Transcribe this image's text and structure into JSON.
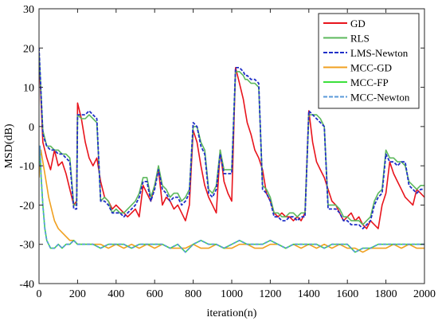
{
  "chart_data": {
    "type": "line",
    "title": "",
    "xlabel": "iteration(n)",
    "ylabel": "MSD(dB)",
    "xlim": [
      0,
      2000
    ],
    "ylim": [
      -40,
      30
    ],
    "xticks": [
      0,
      200,
      400,
      600,
      800,
      1000,
      1200,
      1400,
      1600,
      1800,
      2000
    ],
    "yticks": [
      -40,
      -30,
      -20,
      -10,
      0,
      10,
      20,
      30
    ],
    "grid": false,
    "legend_position": "top-right",
    "series": [
      {
        "name": "GD",
        "color": "#e8141c",
        "dash": "solid",
        "x": [
          0,
          20,
          40,
          60,
          80,
          100,
          120,
          140,
          160,
          180,
          195,
          200,
          220,
          240,
          260,
          280,
          300,
          320,
          340,
          360,
          380,
          400,
          420,
          440,
          460,
          480,
          500,
          520,
          540,
          560,
          580,
          600,
          620,
          640,
          660,
          680,
          700,
          720,
          740,
          760,
          780,
          800,
          820,
          840,
          860,
          880,
          900,
          920,
          940,
          960,
          980,
          1000,
          1020,
          1040,
          1060,
          1070,
          1080,
          1100,
          1120,
          1140,
          1160,
          1180,
          1200,
          1220,
          1240,
          1260,
          1280,
          1300,
          1320,
          1340,
          1360,
          1380,
          1400,
          1420,
          1440,
          1460,
          1480,
          1500,
          1520,
          1540,
          1560,
          1580,
          1600,
          1620,
          1640,
          1660,
          1680,
          1700,
          1720,
          1740,
          1760,
          1780,
          1800,
          1820,
          1840,
          1860,
          1880,
          1900,
          1920,
          1940,
          1960,
          1980,
          2000
        ],
        "y": [
          18,
          -4,
          -8,
          -11,
          -6,
          -10,
          -9,
          -12,
          -16,
          -20,
          -19,
          6,
          2,
          -4,
          -8,
          -10,
          -8,
          -14,
          -18,
          -19,
          -21,
          -20,
          -21,
          -22,
          -23,
          -22,
          -21,
          -23,
          -15,
          -17,
          -19,
          -15,
          -11,
          -20,
          -18,
          -19,
          -21,
          -20,
          -22,
          -24,
          -20,
          -1,
          -4,
          -10,
          -15,
          -18,
          -20,
          -22,
          -6,
          -14,
          -17,
          -19,
          15,
          11,
          7,
          4,
          1,
          -2,
          -6,
          -8,
          -11,
          -17,
          -19,
          -22,
          -23,
          -22,
          -23,
          -23,
          -24,
          -23,
          -24,
          -22,
          4,
          -4,
          -9,
          -11,
          -13,
          -16,
          -19,
          -20,
          -22,
          -24,
          -23,
          -22,
          -24,
          -23,
          -25,
          -26,
          -24,
          -25,
          -26,
          -20,
          -17,
          -9,
          -12,
          -14,
          -16,
          -18,
          -19,
          -20,
          -16,
          -17,
          -18
        ]
      },
      {
        "name": "RLS",
        "color": "#5cb85c",
        "dash": "solid",
        "x": [
          0,
          20,
          40,
          60,
          80,
          100,
          120,
          140,
          160,
          180,
          195,
          200,
          220,
          240,
          260,
          280,
          300,
          320,
          340,
          360,
          380,
          400,
          420,
          440,
          460,
          480,
          500,
          520,
          540,
          560,
          580,
          600,
          620,
          640,
          660,
          680,
          700,
          720,
          740,
          760,
          780,
          800,
          820,
          840,
          860,
          880,
          900,
          920,
          940,
          960,
          980,
          1000,
          1020,
          1040,
          1060,
          1070,
          1080,
          1100,
          1120,
          1140,
          1160,
          1180,
          1200,
          1220,
          1240,
          1260,
          1280,
          1300,
          1320,
          1340,
          1360,
          1380,
          1400,
          1420,
          1440,
          1460,
          1480,
          1500,
          1520,
          1540,
          1560,
          1580,
          1600,
          1620,
          1640,
          1660,
          1680,
          1700,
          1720,
          1740,
          1760,
          1780,
          1800,
          1820,
          1840,
          1860,
          1880,
          1900,
          1920,
          1940,
          1960,
          1980,
          2000
        ],
        "y": [
          19,
          -1,
          -5,
          -5,
          -6,
          -6,
          -7,
          -7,
          -8,
          -20,
          -20,
          3,
          2,
          2,
          3,
          2,
          1,
          -19,
          -18,
          -19,
          -22,
          -21,
          -22,
          -22,
          -21,
          -20,
          -19,
          -17,
          -13,
          -13,
          -18,
          -15,
          -10,
          -15,
          -16,
          -18,
          -17,
          -17,
          -19,
          -18,
          -16,
          0,
          0,
          -4,
          -6,
          -16,
          -17,
          -15,
          -6,
          -11,
          -11,
          -11,
          14,
          14,
          13,
          12,
          12,
          11,
          11,
          10,
          -15,
          -16,
          -18,
          -22,
          -22,
          -23,
          -23,
          -22,
          -22,
          -23,
          -22,
          -22,
          3,
          3,
          3,
          2,
          0,
          -20,
          -20,
          -20,
          -21,
          -23,
          -23,
          -24,
          -24,
          -24,
          -25,
          -24,
          -23,
          -19,
          -17,
          -16,
          -6,
          -8,
          -8,
          -9,
          -9,
          -10,
          -14,
          -15,
          -16,
          -15,
          -15
        ]
      },
      {
        "name": "LMS-Newton",
        "color": "#1f2fc8",
        "dash": "dashed",
        "x": [
          0,
          20,
          40,
          60,
          80,
          100,
          120,
          140,
          160,
          180,
          195,
          200,
          220,
          240,
          260,
          280,
          300,
          320,
          340,
          360,
          380,
          400,
          420,
          440,
          460,
          480,
          500,
          520,
          540,
          560,
          580,
          600,
          620,
          640,
          660,
          680,
          700,
          720,
          740,
          760,
          780,
          800,
          820,
          840,
          860,
          880,
          900,
          920,
          940,
          960,
          980,
          1000,
          1020,
          1040,
          1060,
          1070,
          1080,
          1100,
          1120,
          1140,
          1160,
          1180,
          1200,
          1220,
          1240,
          1260,
          1280,
          1300,
          1320,
          1340,
          1360,
          1380,
          1400,
          1420,
          1440,
          1460,
          1480,
          1500,
          1520,
          1540,
          1560,
          1580,
          1600,
          1620,
          1640,
          1660,
          1680,
          1700,
          1720,
          1740,
          1760,
          1780,
          1800,
          1820,
          1840,
          1860,
          1880,
          1900,
          1920,
          1940,
          1960,
          1980,
          2000
        ],
        "y": [
          20,
          -2,
          -5,
          -6,
          -6,
          -7,
          -7,
          -8,
          -9,
          -21,
          -21,
          3,
          3,
          3,
          4,
          3,
          2,
          -19,
          -19,
          -20,
          -22,
          -22,
          -22,
          -23,
          -22,
          -21,
          -20,
          -18,
          -14,
          -14,
          -19,
          -16,
          -11,
          -16,
          -17,
          -19,
          -18,
          -18,
          -20,
          -19,
          -17,
          1,
          0,
          -5,
          -7,
          -17,
          -18,
          -16,
          -7,
          -12,
          -12,
          -12,
          15,
          15,
          14,
          13,
          13,
          12,
          12,
          11,
          -16,
          -17,
          -19,
          -23,
          -23,
          -24,
          -24,
          -23,
          -23,
          -24,
          -23,
          -23,
          4,
          3,
          2,
          1,
          0,
          -21,
          -21,
          -21,
          -22,
          -24,
          -24,
          -25,
          -25,
          -25,
          -26,
          -25,
          -24,
          -20,
          -18,
          -17,
          -7,
          -9,
          -9,
          -10,
          -9,
          -9,
          -15,
          -16,
          -17,
          -16,
          -16
        ]
      },
      {
        "name": "MCC-GD",
        "color": "#f0a020",
        "dash": "solid",
        "x": [
          0,
          5,
          10,
          20,
          30,
          40,
          50,
          60,
          70,
          80,
          90,
          100,
          120,
          140,
          160,
          180,
          200,
          240,
          280,
          320,
          360,
          400,
          440,
          480,
          520,
          560,
          600,
          640,
          680,
          720,
          760,
          800,
          840,
          880,
          920,
          960,
          1000,
          1040,
          1080,
          1120,
          1160,
          1200,
          1240,
          1280,
          1320,
          1360,
          1400,
          1440,
          1480,
          1520,
          1560,
          1600,
          1640,
          1680,
          1720,
          1760,
          1800,
          1840,
          1880,
          1920,
          1960,
          2000
        ],
        "y": [
          -13,
          -8,
          -6,
          -9,
          -12,
          -15,
          -18,
          -20,
          -22,
          -24,
          -25,
          -26,
          -27,
          -28,
          -29,
          -29,
          -30,
          -30,
          -30,
          -30,
          -31,
          -30,
          -31,
          -30,
          -31,
          -30,
          -31,
          -30,
          -31,
          -31,
          -31,
          -30,
          -31,
          -31,
          -30,
          -31,
          -31,
          -30,
          -30,
          -31,
          -31,
          -30,
          -30,
          -31,
          -30,
          -31,
          -30,
          -31,
          -30,
          -31,
          -30,
          -31,
          -31,
          -32,
          -31,
          -31,
          -31,
          -30,
          -31,
          -30,
          -31,
          -31
        ]
      },
      {
        "name": "MCC-FP",
        "color": "#3be03b",
        "dash": "solid",
        "x": [
          0,
          5,
          10,
          20,
          30,
          40,
          50,
          60,
          70,
          80,
          100,
          120,
          140,
          160,
          180,
          200,
          240,
          280,
          320,
          360,
          400,
          440,
          480,
          520,
          560,
          600,
          640,
          680,
          720,
          760,
          800,
          840,
          880,
          920,
          960,
          1000,
          1040,
          1080,
          1120,
          1160,
          1200,
          1240,
          1280,
          1320,
          1360,
          1400,
          1440,
          1480,
          1520,
          1560,
          1600,
          1640,
          1680,
          1720,
          1760,
          1800,
          1840,
          1880,
          1920,
          1960,
          2000
        ],
        "y": [
          -10,
          -5,
          -12,
          -20,
          -26,
          -29,
          -30,
          -31,
          -31,
          -31,
          -30,
          -31,
          -30,
          -30,
          -29,
          -30,
          -30,
          -30,
          -31,
          -30,
          -30,
          -30,
          -31,
          -30,
          -30,
          -30,
          -30,
          -31,
          -30,
          -32,
          -30,
          -29,
          -30,
          -30,
          -31,
          -30,
          -29,
          -30,
          -30,
          -30,
          -29,
          -30,
          -31,
          -30,
          -30,
          -30,
          -30,
          -31,
          -30,
          -30,
          -30,
          -32,
          -31,
          -31,
          -30,
          -30,
          -30,
          -30,
          -30,
          -30,
          -30
        ]
      },
      {
        "name": "MCC-Newton",
        "color": "#5a9ad8",
        "dash": "dashed",
        "x": [
          0,
          5,
          10,
          20,
          30,
          40,
          50,
          60,
          70,
          80,
          100,
          120,
          140,
          160,
          180,
          200,
          240,
          280,
          320,
          360,
          400,
          440,
          480,
          520,
          560,
          600,
          640,
          680,
          720,
          760,
          800,
          840,
          880,
          920,
          960,
          1000,
          1040,
          1080,
          1120,
          1160,
          1200,
          1240,
          1280,
          1320,
          1360,
          1400,
          1440,
          1480,
          1520,
          1560,
          1600,
          1640,
          1680,
          1720,
          1760,
          1800,
          1840,
          1880,
          1920,
          1960,
          2000
        ],
        "y": [
          -10,
          -5,
          -12,
          -20,
          -26,
          -29,
          -30,
          -31,
          -31,
          -31,
          -30,
          -31,
          -30,
          -30,
          -29,
          -30,
          -30,
          -30,
          -31,
          -30,
          -30,
          -30,
          -31,
          -30,
          -30,
          -30,
          -30,
          -31,
          -30,
          -32,
          -30,
          -29,
          -30,
          -30,
          -31,
          -30,
          -29,
          -30,
          -30,
          -30,
          -29,
          -30,
          -31,
          -30,
          -30,
          -30,
          -30,
          -31,
          -30,
          -30,
          -30,
          -32,
          -31,
          -31,
          -30,
          -30,
          -30,
          -30,
          -30,
          -30,
          -30
        ]
      }
    ]
  }
}
